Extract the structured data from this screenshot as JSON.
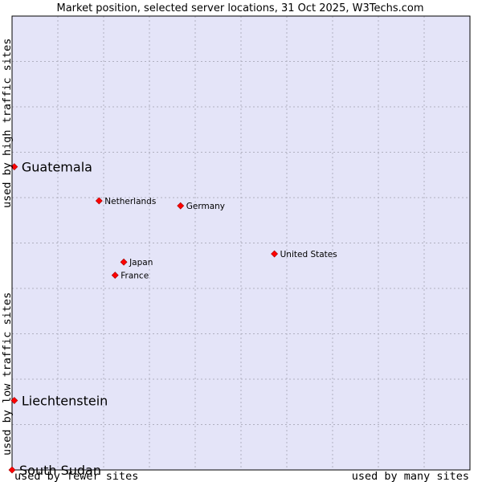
{
  "chart_data": {
    "type": "scatter",
    "title": "Market position, selected server locations, 31 Oct 2025, W3Techs.com",
    "xlabel_left": "used by fewer sites",
    "xlabel_right": "used by many sites",
    "ylabel_bottom": "used by low traffic sites",
    "ylabel_top": "used by high traffic sites",
    "xlim": [
      0,
      100
    ],
    "ylim": [
      0,
      100
    ],
    "grid": true,
    "colors": {
      "plot_background": "#e4e4f8",
      "grid": "#b0b0c0",
      "border": "#000000",
      "point": "#ff0000",
      "point_edge": "#a00000"
    },
    "points": [
      {
        "name": "Guatemala",
        "x": 0.5,
        "y": 66.8,
        "emphasis": true
      },
      {
        "name": "Netherlands",
        "x": 19.0,
        "y": 59.3,
        "emphasis": false
      },
      {
        "name": "Germany",
        "x": 36.8,
        "y": 58.2,
        "emphasis": false
      },
      {
        "name": "United States",
        "x": 57.3,
        "y": 47.6,
        "emphasis": false
      },
      {
        "name": "Japan",
        "x": 24.4,
        "y": 45.8,
        "emphasis": false
      },
      {
        "name": "France",
        "x": 22.5,
        "y": 42.9,
        "emphasis": false
      },
      {
        "name": "Liechtenstein",
        "x": 0.5,
        "y": 15.3,
        "emphasis": true
      },
      {
        "name": "South Sudan",
        "x": 0.0,
        "y": 0.0,
        "emphasis": true
      }
    ]
  }
}
